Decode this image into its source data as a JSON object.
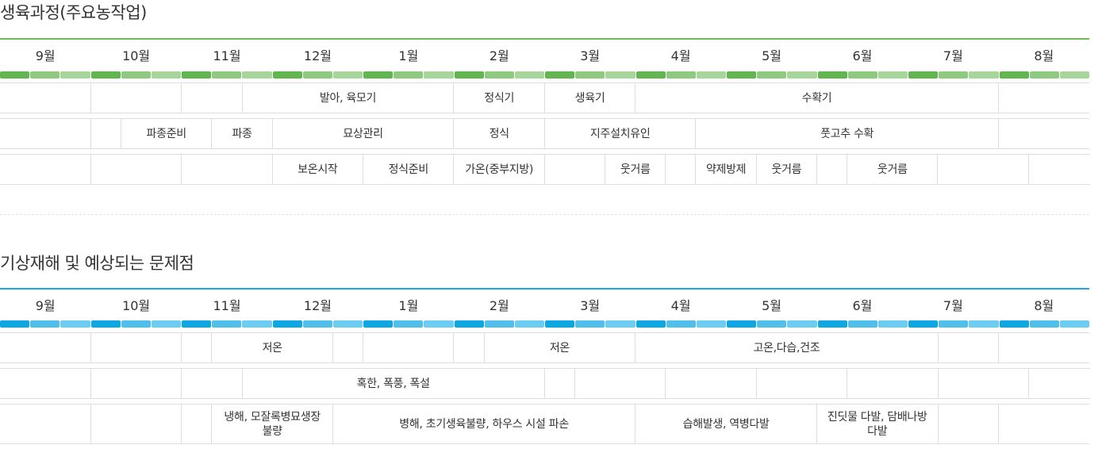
{
  "months": [
    "9월",
    "10월",
    "11월",
    "12월",
    "1월",
    "2월",
    "3월",
    "4월",
    "5월",
    "6월",
    "7월",
    "8월"
  ],
  "growth": {
    "title": "생육과정(주요농작업)",
    "accent": "#6dbb5a",
    "bar_dark": "#62b64f",
    "bar_light": "#a6d699",
    "rows": [
      [
        {
          "text": "",
          "span": 3
        },
        {
          "text": "",
          "span": 3
        },
        {
          "text": "",
          "span": 2
        },
        {
          "text": "발아, 육모기",
          "span": 7
        },
        {
          "text": "정식기",
          "span": 3
        },
        {
          "text": "생육기",
          "span": 3
        },
        {
          "text": "수확기",
          "span": 12
        },
        {
          "text": "",
          "span": 3
        }
      ],
      [
        {
          "text": "",
          "span": 3
        },
        {
          "text": "",
          "span": 1
        },
        {
          "text": "파종준비",
          "span": 3
        },
        {
          "text": "파종",
          "span": 2
        },
        {
          "text": "묘상관리",
          "span": 6
        },
        {
          "text": "정식",
          "span": 3
        },
        {
          "text": "지주설치유인",
          "span": 5
        },
        {
          "text": "풋고추 수확",
          "span": 10
        },
        {
          "text": "",
          "span": 3
        }
      ],
      [
        {
          "text": "",
          "span": 3
        },
        {
          "text": "",
          "span": 3
        },
        {
          "text": "",
          "span": 3
        },
        {
          "text": "보온시작",
          "span": 3
        },
        {
          "text": "정식준비",
          "span": 3
        },
        {
          "text": "가온(중부지방)",
          "span": 3
        },
        {
          "text": "",
          "span": 2
        },
        {
          "text": "웃거름",
          "span": 2
        },
        {
          "text": "",
          "span": 1
        },
        {
          "text": "약제방제",
          "span": 2
        },
        {
          "text": "웃거름",
          "span": 2
        },
        {
          "text": "",
          "span": 1
        },
        {
          "text": "웃거름",
          "span": 3
        },
        {
          "text": "",
          "span": 3
        },
        {
          "text": "",
          "span": 3
        }
      ]
    ]
  },
  "weather": {
    "title": "기상재해 및 예상되는 문제점",
    "accent": "#1aa6e1",
    "bar_dark": "#0ea6e3",
    "bar_light": "#6ccdf2",
    "rows": [
      [
        {
          "text": "",
          "span": 3
        },
        {
          "text": "",
          "span": 3
        },
        {
          "text": "",
          "span": 1
        },
        {
          "text": "저온",
          "span": 4
        },
        {
          "text": "",
          "span": 1
        },
        {
          "text": "",
          "span": 3
        },
        {
          "text": "",
          "span": 1
        },
        {
          "text": "저온",
          "span": 5
        },
        {
          "text": "고온,다습,건조",
          "span": 10
        },
        {
          "text": "",
          "span": 2
        },
        {
          "text": "",
          "span": 3
        }
      ],
      [
        {
          "text": "",
          "span": 3
        },
        {
          "text": "",
          "span": 3
        },
        {
          "text": "",
          "span": 2
        },
        {
          "text": "혹한, 폭풍, 폭설",
          "span": 10
        },
        {
          "text": "",
          "span": 1
        },
        {
          "text": "",
          "span": 3
        },
        {
          "text": "",
          "span": 3
        },
        {
          "text": "",
          "span": 3
        },
        {
          "text": "",
          "span": 3
        },
        {
          "text": "",
          "span": 3
        },
        {
          "text": "",
          "span": 3
        }
      ],
      [
        {
          "text": "",
          "span": 3
        },
        {
          "text": "",
          "span": 3
        },
        {
          "text": "",
          "span": 1
        },
        {
          "text": "냉해, 모잘록병묘생장\n불량",
          "span": 4
        },
        {
          "text": "병해, 초기생육불량, 하우스 시설 파손",
          "span": 10
        },
        {
          "text": "습해발생, 역병다발",
          "span": 6
        },
        {
          "text": "진딧물 다발, 담배나방\n다발",
          "span": 4
        },
        {
          "text": "",
          "span": 2
        },
        {
          "text": "",
          "span": 3
        }
      ]
    ]
  }
}
